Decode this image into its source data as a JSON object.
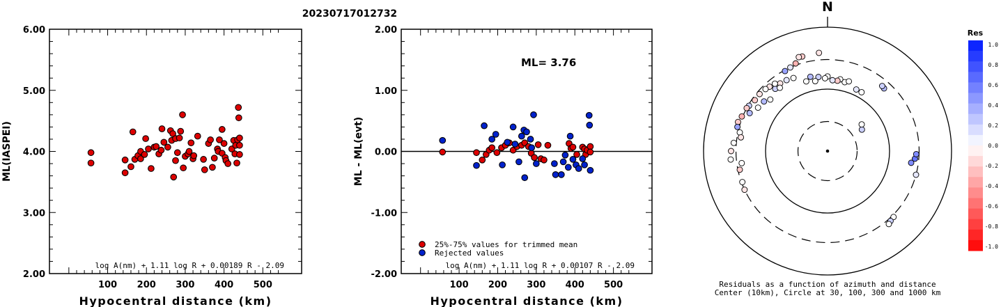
{
  "page_title": "20230717012732",
  "chart_data": [
    {
      "type": "scatter",
      "ylabel": "ML(IASPEI)",
      "xlabel": "Hypocentral distance (km)",
      "xlim": [
        -50,
        600
      ],
      "ylim": [
        2.0,
        6.0
      ],
      "xticks": [
        "100",
        "200",
        "300",
        "400",
        "500"
      ],
      "yticks": [
        "2.00",
        "3.00",
        "4.00",
        "5.00",
        "6.00"
      ],
      "formula": "log A(nm) + 1.11 log R + 0.00189 R - 2.09",
      "marker_color": "#dd0000",
      "points": [
        [
          57,
          3.98
        ],
        [
          57,
          3.81
        ],
        [
          145,
          3.86
        ],
        [
          145,
          3.65
        ],
        [
          160,
          3.75
        ],
        [
          165,
          4.32
        ],
        [
          170,
          3.87
        ],
        [
          178,
          3.93
        ],
        [
          185,
          3.88
        ],
        [
          185,
          4.0
        ],
        [
          195,
          3.95
        ],
        [
          198,
          4.21
        ],
        [
          205,
          4.04
        ],
        [
          212,
          3.72
        ],
        [
          220,
          4.07
        ],
        [
          225,
          4.08
        ],
        [
          232,
          3.96
        ],
        [
          238,
          4.02
        ],
        [
          240,
          4.37
        ],
        [
          245,
          4.15
        ],
        [
          255,
          4.07
        ],
        [
          262,
          4.34
        ],
        [
          265,
          4.18
        ],
        [
          268,
          4.29
        ],
        [
          270,
          3.58
        ],
        [
          275,
          4.21
        ],
        [
          275,
          3.85
        ],
        [
          280,
          3.98
        ],
        [
          285,
          4.22
        ],
        [
          288,
          4.33
        ],
        [
          293,
          4.6
        ],
        [
          295,
          3.73
        ],
        [
          300,
          3.92
        ],
        [
          307,
          3.96
        ],
        [
          310,
          4.0
        ],
        [
          315,
          4.14
        ],
        [
          320,
          3.88
        ],
        [
          322,
          3.93
        ],
        [
          332,
          4.25
        ],
        [
          347,
          3.87
        ],
        [
          350,
          3.7
        ],
        [
          360,
          4.13
        ],
        [
          365,
          4.19
        ],
        [
          370,
          3.74
        ],
        [
          375,
          3.89
        ],
        [
          383,
          4.04
        ],
        [
          385,
          4.0
        ],
        [
          388,
          4.19
        ],
        [
          395,
          4.36
        ],
        [
          395,
          3.97
        ],
        [
          400,
          4.13
        ],
        [
          403,
          3.9
        ],
        [
          405,
          3.85
        ],
        [
          410,
          3.8
        ],
        [
          420,
          4.04
        ],
        [
          425,
          4.18
        ],
        [
          428,
          3.96
        ],
        [
          430,
          4.1
        ],
        [
          433,
          3.81
        ],
        [
          435,
          4.19
        ],
        [
          437,
          4.72
        ],
        [
          438,
          4.55
        ],
        [
          440,
          4.22
        ],
        [
          440,
          4.1
        ],
        [
          440,
          3.95
        ]
      ]
    },
    {
      "type": "scatter",
      "ylabel": "ML - ML(evt)",
      "xlabel": "Hypocentral distance (km)",
      "xlim": [
        -50,
        600
      ],
      "ylim": [
        -2.0,
        2.0
      ],
      "xticks": [
        "100",
        "200",
        "300",
        "400",
        "500"
      ],
      "yticks": [
        "-2.00",
        "-1.00",
        "0.00",
        "1.00",
        "2.00"
      ],
      "annotation": "ML= 3.76",
      "formula": "log A(nm) + 1.11 log R + 0.00107 R - 2.09",
      "zero_line": 0.0,
      "legend": [
        {
          "label": "25%-75% values for trimmed mean",
          "color": "#dd0000"
        },
        {
          "label": "Rejected values",
          "color": "#0022cc"
        }
      ],
      "series": [
        {
          "name": "25%-75% values for trimmed mean",
          "color": "#dd0000",
          "points": [
            [
              57,
              -0.01
            ],
            [
              145,
              -0.02
            ],
            [
              160,
              -0.14
            ],
            [
              170,
              -0.05
            ],
            [
              178,
              0.02
            ],
            [
              185,
              0.06
            ],
            [
              198,
              -0.02
            ],
            [
              210,
              0.06
            ],
            [
              220,
              0.1
            ],
            [
              230,
              0.14
            ],
            [
              240,
              0.02
            ],
            [
              250,
              0.08
            ],
            [
              262,
              0.1
            ],
            [
              270,
              0.14
            ],
            [
              280,
              0.08
            ],
            [
              287,
              -0.03
            ],
            [
              295,
              -0.1
            ],
            [
              305,
              0.11
            ],
            [
              312,
              -0.12
            ],
            [
              320,
              -0.14
            ],
            [
              330,
              0.1
            ],
            [
              385,
              0.13
            ],
            [
              390,
              0.05
            ],
            [
              395,
              0.07
            ],
            [
              405,
              -0.05
            ],
            [
              420,
              0.07
            ],
            [
              425,
              0.04
            ],
            [
              428,
              -0.05
            ],
            [
              432,
              0.02
            ],
            [
              440,
              0.08
            ],
            [
              440,
              -0.01
            ]
          ]
        },
        {
          "name": "Rejected values",
          "color": "#0022cc",
          "points": [
            [
              57,
              0.18
            ],
            [
              145,
              -0.23
            ],
            [
              165,
              0.42
            ],
            [
              185,
              0.2
            ],
            [
              195,
              0.28
            ],
            [
              212,
              -0.22
            ],
            [
              225,
              0.15
            ],
            [
              240,
              0.4
            ],
            [
              245,
              0.12
            ],
            [
              255,
              -0.17
            ],
            [
              262,
              0.25
            ],
            [
              268,
              0.35
            ],
            [
              270,
              -0.43
            ],
            [
              275,
              0.32
            ],
            [
              285,
              0.2
            ],
            [
              288,
              0.06
            ],
            [
              293,
              0.6
            ],
            [
              300,
              -0.2
            ],
            [
              347,
              -0.2
            ],
            [
              350,
              -0.38
            ],
            [
              365,
              -0.38
            ],
            [
              370,
              -0.17
            ],
            [
              375,
              -0.06
            ],
            [
              383,
              -0.26
            ],
            [
              388,
              0.25
            ],
            [
              395,
              -0.13
            ],
            [
              403,
              -0.22
            ],
            [
              410,
              -0.28
            ],
            [
              420,
              -0.12
            ],
            [
              425,
              -0.22
            ],
            [
              437,
              0.59
            ],
            [
              438,
              0.43
            ],
            [
              440,
              -0.31
            ]
          ]
        }
      ]
    },
    {
      "type": "polar-scatter",
      "north_label": "N",
      "caption_line1": "Residuals as a function of azimuth and distance",
      "caption_line2": "Center (10km), Circle at 30, 100, 300 and 1000 km",
      "rings_km": [
        30,
        100,
        300,
        1000
      ],
      "colorbar_title": "Res",
      "colorbar_ticks": [
        "1.0",
        "0.8",
        "0.6",
        "0.4",
        "0.2",
        "0.0",
        "-0.2",
        "-0.4",
        "-0.6",
        "-0.8",
        "-1.0"
      ],
      "points": [
        {
          "az": 25,
          "dist_km": 125,
          "res": 0.1
        },
        {
          "az": 30,
          "dist_km": 125,
          "res": 0.0
        },
        {
          "az": 95,
          "dist_km": 260,
          "res": 0.6
        },
        {
          "az": 92,
          "dist_km": 270,
          "res": 0.5
        },
        {
          "az": 98,
          "dist_km": 230,
          "res": 0.5
        },
        {
          "az": 42,
          "dist_km": 230,
          "res": 0.3
        },
        {
          "az": 40,
          "dist_km": 235,
          "res": 0.2
        },
        {
          "az": 105,
          "dist_km": 300,
          "res": 0.1
        },
        {
          "az": 135,
          "dist_km": 320,
          "res": 0.0
        },
        {
          "az": 138,
          "dist_km": 330,
          "res": 0.2
        },
        {
          "az": 140,
          "dist_km": 345,
          "res": 0.0
        },
        {
          "az": 355,
          "dist_km": 390,
          "res": -0.1
        },
        {
          "az": 345,
          "dist_km": 380,
          "res": -0.2
        },
        {
          "az": 343,
          "dist_km": 385,
          "res": -0.1
        },
        {
          "az": 335,
          "dist_km": 200,
          "res": 0.0
        },
        {
          "az": 330,
          "dist_km": 210,
          "res": 0.1
        },
        {
          "az": 325,
          "dist_km": 215,
          "res": -0.1
        },
        {
          "az": 320,
          "dist_km": 205,
          "res": 0.2
        },
        {
          "az": 322,
          "dist_km": 240,
          "res": 0.0
        },
        {
          "az": 318,
          "dist_km": 250,
          "res": -0.1
        },
        {
          "az": 315,
          "dist_km": 260,
          "res": 0.0
        },
        {
          "az": 310,
          "dist_km": 270,
          "res": -0.1
        },
        {
          "az": 305,
          "dist_km": 270,
          "res": -0.2
        },
        {
          "az": 300,
          "dist_km": 290,
          "res": 0.2
        },
        {
          "az": 296,
          "dist_km": 250,
          "res": 0.3
        },
        {
          "az": 298,
          "dist_km": 300,
          "res": -0.2
        },
        {
          "az": 292,
          "dist_km": 310,
          "res": -0.3
        },
        {
          "az": 288,
          "dist_km": 330,
          "res": -0.2
        },
        {
          "az": 285,
          "dist_km": 320,
          "res": 0.4
        },
        {
          "az": 282,
          "dist_km": 280,
          "res": 0.0
        },
        {
          "az": 279,
          "dist_km": 260,
          "res": -0.1
        },
        {
          "az": 275,
          "dist_km": 330,
          "res": 0.0
        },
        {
          "az": 270,
          "dist_km": 360,
          "res": -0.1
        },
        {
          "az": 265,
          "dist_km": 370,
          "res": 0.0
        },
        {
          "az": 262,
          "dist_km": 250,
          "res": 0.0
        },
        {
          "az": 258,
          "dist_km": 280,
          "res": -0.2
        },
        {
          "az": 250,
          "dist_km": 290,
          "res": 0.0
        },
        {
          "az": 245,
          "dist_km": 300,
          "res": -0.1
        },
        {
          "az": 323,
          "dist_km": 190,
          "res": 0.0
        },
        {
          "az": 312,
          "dist_km": 175,
          "res": 0.0
        },
        {
          "az": 308,
          "dist_km": 200,
          "res": 0.3
        },
        {
          "az": 302,
          "dist_km": 210,
          "res": 0.0
        },
        {
          "az": 340,
          "dist_km": 320,
          "res": -0.3
        },
        {
          "az": 336,
          "dist_km": 300,
          "res": 0.1
        },
        {
          "az": 332,
          "dist_km": 290,
          "res": 0.4
        },
        {
          "az": 14,
          "dist_km": 140,
          "res": 0.0
        },
        {
          "az": 17,
          "dist_km": 150,
          "res": 0.0
        },
        {
          "az": 10,
          "dist_km": 150,
          "res": 0.0
        },
        {
          "az": 8,
          "dist_km": 140,
          "res": -0.2
        },
        {
          "az": 4,
          "dist_km": 140,
          "res": 0.1
        },
        {
          "az": 0,
          "dist_km": 160,
          "res": 0.0
        },
        {
          "az": 358,
          "dist_km": 150,
          "res": 0.0
        },
        {
          "az": 353,
          "dist_km": 160,
          "res": 0.2
        },
        {
          "az": 350,
          "dist_km": 140,
          "res": 0.0
        },
        {
          "az": 347,
          "dist_km": 170,
          "res": 0.3
        },
        {
          "az": 343,
          "dist_km": 150,
          "res": 0.0
        },
        {
          "az": 58,
          "dist_km": 45,
          "res": 0.2
        },
        {
          "az": 52,
          "dist_km": 50,
          "res": 0.0
        }
      ]
    }
  ]
}
